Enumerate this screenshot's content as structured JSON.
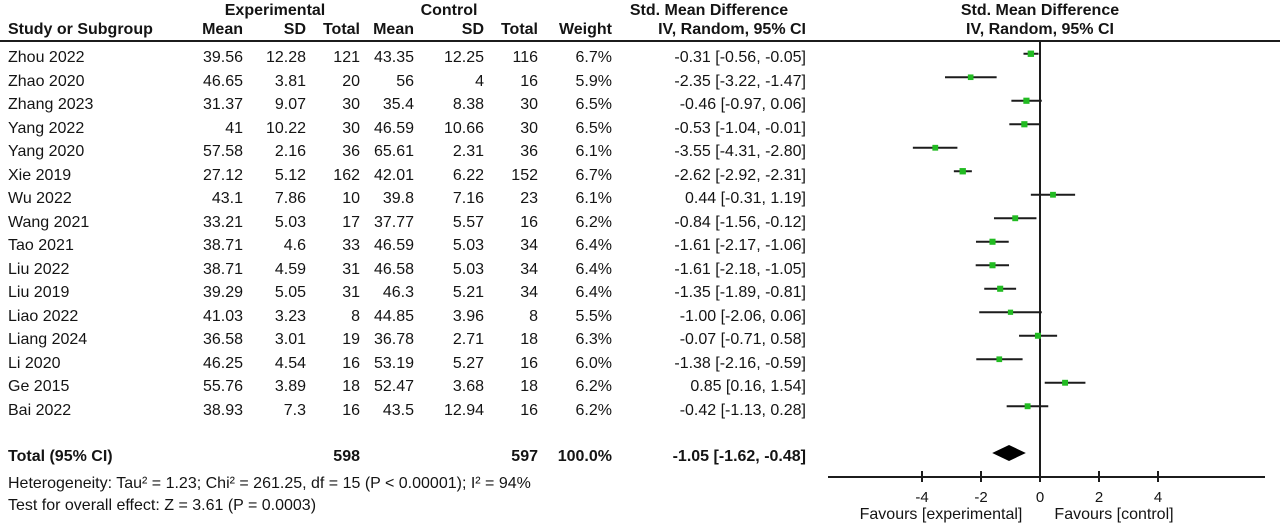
{
  "header": {
    "study": "Study or Subgroup",
    "experimental": "Experimental",
    "control": "Control",
    "mean": "Mean",
    "sd": "SD",
    "total": "Total",
    "weight": "Weight",
    "smd": "Std. Mean Difference",
    "method": "IV, Random, 95% CI"
  },
  "footer": {
    "heterogeneity": "Heterogeneity: Tau² = 1.23; Chi² = 261.25, df = 15 (P < 0.00001); I² = 94%",
    "overall_effect": "Test for overall effect: Z = 3.61 (P = 0.0003)"
  },
  "chart_data": {
    "type": "scatter",
    "subtype": "forest_plot",
    "effect_measure": "Std. Mean Difference",
    "model": "IV, Random, 95% CI",
    "marker_color": "#22bb22",
    "line_color": "#1c1c1c",
    "diamond_color": "#000000",
    "axis": {
      "ticks": [
        -4,
        -2,
        0,
        2,
        4
      ],
      "xlim": [
        -7.2,
        7.6
      ],
      "favours_left": "Favours [experimental]",
      "favours_right": "Favours [control]"
    },
    "studies": [
      {
        "study": "Zhou 2022",
        "mean_exp": "39.56",
        "sd_exp": "12.28",
        "total_exp": "121",
        "mean_ctl": "43.35",
        "sd_ctl": "12.25",
        "total_ctl": "116",
        "weight": "6.7%",
        "weight_value": 6.7,
        "ci_text": "-0.31 [-0.56, -0.05]",
        "est": -0.31,
        "lo": -0.56,
        "hi": -0.05
      },
      {
        "study": "Zhao 2020",
        "mean_exp": "46.65",
        "sd_exp": "3.81",
        "total_exp": "20",
        "mean_ctl": "56",
        "sd_ctl": "4",
        "total_ctl": "16",
        "weight": "5.9%",
        "weight_value": 5.9,
        "ci_text": "-2.35 [-3.22, -1.47]",
        "est": -2.35,
        "lo": -3.22,
        "hi": -1.47
      },
      {
        "study": "Zhang 2023",
        "mean_exp": "31.37",
        "sd_exp": "9.07",
        "total_exp": "30",
        "mean_ctl": "35.4",
        "sd_ctl": "8.38",
        "total_ctl": "30",
        "weight": "6.5%",
        "weight_value": 6.5,
        "ci_text": "-0.46 [-0.97, 0.06]",
        "est": -0.46,
        "lo": -0.97,
        "hi": 0.06
      },
      {
        "study": "Yang 2022",
        "mean_exp": "41",
        "sd_exp": "10.22",
        "total_exp": "30",
        "mean_ctl": "46.59",
        "sd_ctl": "10.66",
        "total_ctl": "30",
        "weight": "6.5%",
        "weight_value": 6.5,
        "ci_text": "-0.53 [-1.04, -0.01]",
        "est": -0.53,
        "lo": -1.04,
        "hi": -0.01
      },
      {
        "study": "Yang 2020",
        "mean_exp": "57.58",
        "sd_exp": "2.16",
        "total_exp": "36",
        "mean_ctl": "65.61",
        "sd_ctl": "2.31",
        "total_ctl": "36",
        "weight": "6.1%",
        "weight_value": 6.1,
        "ci_text": "-3.55 [-4.31, -2.80]",
        "est": -3.55,
        "lo": -4.31,
        "hi": -2.8
      },
      {
        "study": "Xie 2019",
        "mean_exp": "27.12",
        "sd_exp": "5.12",
        "total_exp": "162",
        "mean_ctl": "42.01",
        "sd_ctl": "6.22",
        "total_ctl": "152",
        "weight": "6.7%",
        "weight_value": 6.7,
        "ci_text": "-2.62 [-2.92, -2.31]",
        "est": -2.62,
        "lo": -2.92,
        "hi": -2.31
      },
      {
        "study": "Wu 2022",
        "mean_exp": "43.1",
        "sd_exp": "7.86",
        "total_exp": "10",
        "mean_ctl": "39.8",
        "sd_ctl": "7.16",
        "total_ctl": "23",
        "weight": "6.1%",
        "weight_value": 6.1,
        "ci_text": "0.44 [-0.31, 1.19]",
        "est": 0.44,
        "lo": -0.31,
        "hi": 1.19
      },
      {
        "study": "Wang 2021",
        "mean_exp": "33.21",
        "sd_exp": "5.03",
        "total_exp": "17",
        "mean_ctl": "37.77",
        "sd_ctl": "5.57",
        "total_ctl": "16",
        "weight": "6.2%",
        "weight_value": 6.2,
        "ci_text": "-0.84 [-1.56, -0.12]",
        "est": -0.84,
        "lo": -1.56,
        "hi": -0.12
      },
      {
        "study": "Tao 2021",
        "mean_exp": "38.71",
        "sd_exp": "4.6",
        "total_exp": "33",
        "mean_ctl": "46.59",
        "sd_ctl": "5.03",
        "total_ctl": "34",
        "weight": "6.4%",
        "weight_value": 6.4,
        "ci_text": "-1.61 [-2.17, -1.06]",
        "est": -1.61,
        "lo": -2.17,
        "hi": -1.06
      },
      {
        "study": "Liu 2022",
        "mean_exp": "38.71",
        "sd_exp": "4.59",
        "total_exp": "31",
        "mean_ctl": "46.58",
        "sd_ctl": "5.03",
        "total_ctl": "34",
        "weight": "6.4%",
        "weight_value": 6.4,
        "ci_text": "-1.61 [-2.18, -1.05]",
        "est": -1.61,
        "lo": -2.18,
        "hi": -1.05
      },
      {
        "study": "Liu 2019",
        "mean_exp": "39.29",
        "sd_exp": "5.05",
        "total_exp": "31",
        "mean_ctl": "46.3",
        "sd_ctl": "5.21",
        "total_ctl": "34",
        "weight": "6.4%",
        "weight_value": 6.4,
        "ci_text": "-1.35 [-1.89, -0.81]",
        "est": -1.35,
        "lo": -1.89,
        "hi": -0.81
      },
      {
        "study": "Liao 2022",
        "mean_exp": "41.03",
        "sd_exp": "3.23",
        "total_exp": "8",
        "mean_ctl": "44.85",
        "sd_ctl": "3.96",
        "total_ctl": "8",
        "weight": "5.5%",
        "weight_value": 5.5,
        "ci_text": "-1.00 [-2.06, 0.06]",
        "est": -1.0,
        "lo": -2.06,
        "hi": 0.06
      },
      {
        "study": "Liang 2024",
        "mean_exp": "36.58",
        "sd_exp": "3.01",
        "total_exp": "19",
        "mean_ctl": "36.78",
        "sd_ctl": "2.71",
        "total_ctl": "18",
        "weight": "6.3%",
        "weight_value": 6.3,
        "ci_text": "-0.07 [-0.71, 0.58]",
        "est": -0.07,
        "lo": -0.71,
        "hi": 0.58
      },
      {
        "study": "Li 2020",
        "mean_exp": "46.25",
        "sd_exp": "4.54",
        "total_exp": "16",
        "mean_ctl": "53.19",
        "sd_ctl": "5.27",
        "total_ctl": "16",
        "weight": "6.0%",
        "weight_value": 6.0,
        "ci_text": "-1.38 [-2.16, -0.59]",
        "est": -1.38,
        "lo": -2.16,
        "hi": -0.59
      },
      {
        "study": "Ge 2015",
        "mean_exp": "55.76",
        "sd_exp": "3.89",
        "total_exp": "18",
        "mean_ctl": "52.47",
        "sd_ctl": "3.68",
        "total_ctl": "18",
        "weight": "6.2%",
        "weight_value": 6.2,
        "ci_text": "0.85 [0.16, 1.54]",
        "est": 0.85,
        "lo": 0.16,
        "hi": 1.54
      },
      {
        "study": "Bai 2022",
        "mean_exp": "38.93",
        "sd_exp": "7.3",
        "total_exp": "16",
        "mean_ctl": "43.5",
        "sd_ctl": "12.94",
        "total_ctl": "16",
        "weight": "6.2%",
        "weight_value": 6.2,
        "ci_text": "-0.42 [-1.13, 0.28]",
        "est": -0.42,
        "lo": -1.13,
        "hi": 0.28
      }
    ],
    "total": {
      "label": "Total (95% CI)",
      "total_exp": "598",
      "total_ctl": "597",
      "weight": "100.0%",
      "ci_text": "-1.05 [-1.62, -0.48]",
      "est": -1.05,
      "lo": -1.62,
      "hi": -0.48
    }
  }
}
